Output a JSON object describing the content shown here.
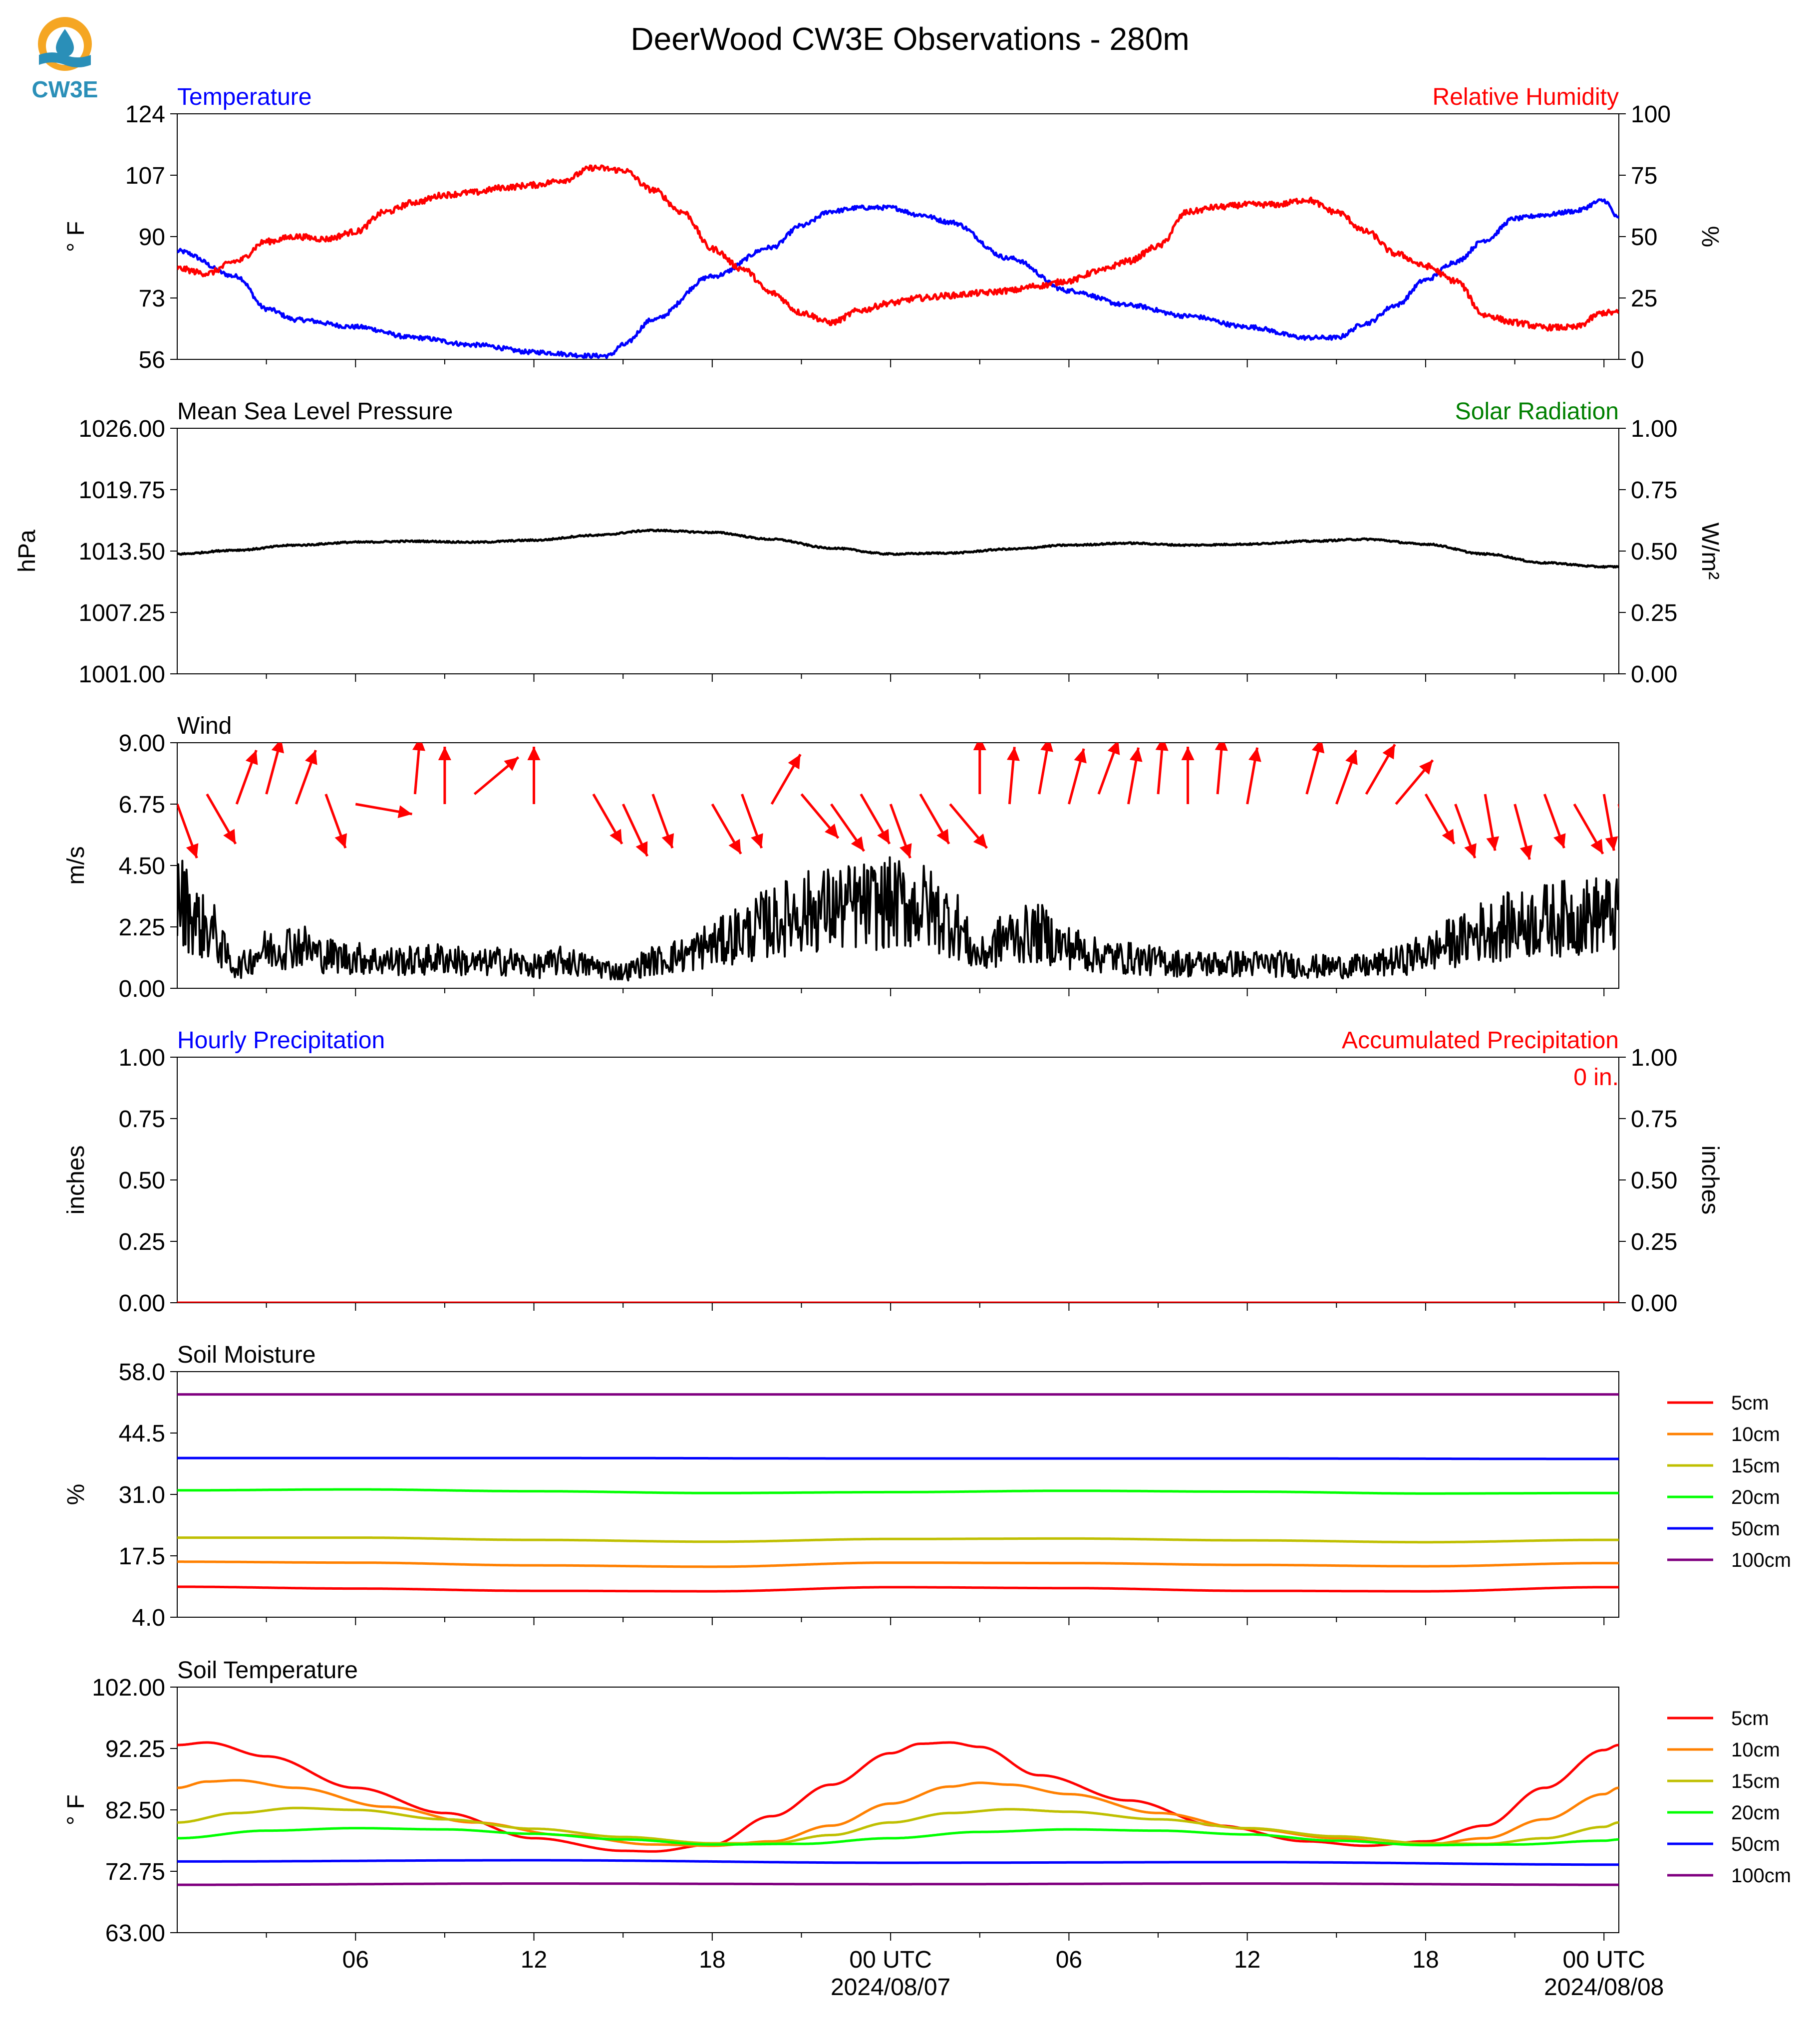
{
  "title": "DeerWood CW3E Observations - 280m",
  "logo": {
    "text": "CW3E",
    "icon": "water-drop-sun-logo",
    "colors": {
      "sun": "#f5a623",
      "water": "#2a8fb8"
    }
  },
  "colors": {
    "blue": "#0000ff",
    "red": "#ff0000",
    "green": "#008000",
    "black": "#000000"
  },
  "x_axis": {
    "range_hours": [
      -24,
      24.5
    ],
    "tick_labels": [
      {
        "h": -18,
        "label": "06"
      },
      {
        "h": -12,
        "label": "12"
      },
      {
        "h": -6,
        "label": "18"
      },
      {
        "h": 0,
        "label": "00 UTC",
        "date": "2024/08/07"
      },
      {
        "h": 6,
        "label": "06"
      },
      {
        "h": 12,
        "label": "12"
      },
      {
        "h": 18,
        "label": "18"
      },
      {
        "h": 24,
        "label": "00 UTC",
        "date": "2024/08/08"
      }
    ]
  },
  "chart_data": [
    {
      "type": "line",
      "title_left": "Temperature",
      "title_right": "Relative Humidity",
      "ylabel": "° F",
      "ylabel_right": "%",
      "ylim": [
        56,
        124
      ],
      "yticks": [
        "56",
        "73",
        "90",
        "107",
        "124"
      ],
      "ylim_right": [
        0,
        100
      ],
      "yticks_right": [
        "0",
        "25",
        "50",
        "75",
        "100"
      ],
      "series": [
        {
          "name": "Temperature",
          "color": "#0000ff",
          "axis": "left",
          "x": [
            -24,
            -22,
            -21,
            -20,
            -18,
            -16,
            -14,
            -12,
            -10,
            -9.5,
            -9,
            -8,
            -6,
            -4,
            -3,
            -2,
            -1,
            0,
            1,
            2,
            4,
            6,
            8,
            10,
            12,
            14,
            15,
            16,
            17,
            18,
            19,
            20,
            21,
            22,
            23,
            24,
            24.5
          ],
          "y": [
            86,
            79,
            70,
            67,
            65,
            62,
            60,
            58,
            57,
            57,
            60,
            67,
            79,
            87,
            93,
            97,
            98,
            98,
            96,
            94,
            84,
            75,
            71,
            68,
            65,
            62,
            62,
            66,
            71,
            78,
            83,
            89,
            95,
            96,
            97,
            100,
            95
          ]
        },
        {
          "name": "Relative Humidity",
          "color": "#ff0000",
          "axis": "right",
          "x": [
            -24,
            -23,
            -22,
            -21,
            -20,
            -19,
            -18,
            -17,
            -16,
            -15,
            -14,
            -13,
            -12,
            -11,
            -10,
            -9,
            -8,
            -7,
            -6,
            -5,
            -4,
            -3,
            -2,
            -1,
            0,
            1,
            2,
            3,
            4,
            5,
            6,
            7,
            8,
            9,
            10,
            11,
            12,
            13,
            14,
            15,
            16,
            17,
            18,
            19,
            20,
            21,
            22,
            23,
            24,
            24.5
          ],
          "y": [
            37,
            35,
            40,
            48,
            50,
            49,
            52,
            60,
            64,
            67,
            68,
            70,
            71,
            73,
            78,
            77,
            69,
            60,
            45,
            37,
            27,
            19,
            15,
            20,
            23,
            25,
            26,
            27,
            28,
            30,
            32,
            36,
            40,
            46,
            60,
            62,
            63,
            63,
            65,
            60,
            52,
            43,
            38,
            32,
            18,
            15,
            13,
            13,
            19,
            19
          ]
        }
      ]
    },
    {
      "type": "line",
      "title_left": "Mean Sea Level Pressure",
      "title_right": "Solar Radiation",
      "ylabel": "hPa",
      "ylabel_right": "W/m²",
      "ylim": [
        1001,
        1026
      ],
      "yticks": [
        "1001.00",
        "1007.25",
        "1013.50",
        "1019.75",
        "1026.00"
      ],
      "ylim_right": [
        0,
        1
      ],
      "yticks_right": [
        "0.00",
        "0.25",
        "0.50",
        "0.75",
        "1.00"
      ],
      "series": [
        {
          "name": "Mean Sea Level Pressure",
          "color": "#000000",
          "axis": "left",
          "x": [
            -24,
            -22,
            -20,
            -18,
            -16,
            -14,
            -12,
            -10,
            -8,
            -6,
            -4,
            -2,
            0,
            2,
            4,
            6,
            8,
            10,
            12,
            14,
            16,
            18,
            20,
            22,
            24,
            24.5
          ],
          "y": [
            1013.2,
            1013.6,
            1014.1,
            1014.4,
            1014.5,
            1014.4,
            1014.6,
            1015.1,
            1015.6,
            1015.4,
            1014.7,
            1013.8,
            1013.2,
            1013.3,
            1013.7,
            1014.1,
            1014.3,
            1014.1,
            1014.2,
            1014.5,
            1014.7,
            1014.2,
            1013.2,
            1012.3,
            1011.9,
            1011.9
          ]
        }
      ]
    },
    {
      "type": "line",
      "title_left": "Wind",
      "ylabel": "m/s",
      "ylim": [
        0,
        9
      ],
      "yticks": [
        "0.00",
        "2.25",
        "4.50",
        "6.75",
        "9.00"
      ],
      "series": [
        {
          "name": "Wind",
          "color": "#000000",
          "axis": "left",
          "x": [
            -24,
            -23,
            -22,
            -21,
            -20,
            -19,
            -18,
            -17,
            -16,
            -15,
            -14,
            -13,
            -12,
            -11,
            -10,
            -9,
            -8,
            -7,
            -6,
            -5,
            -4,
            -3,
            -2,
            -1,
            0,
            1,
            2,
            3,
            4,
            5,
            6,
            7,
            8,
            9,
            10,
            11,
            12,
            13,
            14,
            15,
            16,
            17,
            18,
            19,
            20,
            21,
            22,
            23,
            24,
            24.5
          ],
          "y": [
            3.2,
            2.2,
            0.8,
            1.4,
            1.6,
            1.2,
            1.1,
            1.0,
            1.0,
            1.1,
            0.9,
            1.0,
            0.8,
            1.0,
            0.8,
            0.6,
            1.0,
            1.2,
            1.6,
            2.0,
            2.4,
            2.8,
            2.9,
            3.0,
            3.1,
            3.0,
            2.5,
            1.2,
            1.9,
            2.0,
            1.5,
            1.2,
            1.1,
            1.0,
            0.9,
            0.9,
            0.9,
            0.9,
            0.8,
            0.8,
            0.8,
            1.0,
            1.3,
            1.7,
            2.1,
            2.3,
            2.5,
            2.6,
            2.7,
            2.6
          ]
        },
        {
          "name": "Wind Direction",
          "color": "#ff0000",
          "kind": "barbs",
          "y_base": 6.75,
          "x": [
            -24,
            -23,
            -22,
            -21,
            -20,
            -19,
            -18,
            -16,
            -15,
            -14,
            -12,
            -10,
            -9,
            -8,
            -6,
            -5,
            -4,
            -3,
            -2,
            -1,
            0,
            1,
            2,
            3,
            4,
            5,
            6,
            7,
            8,
            9,
            10,
            11,
            12,
            14,
            15,
            16,
            17,
            18,
            19,
            20,
            21,
            22,
            23,
            24,
            24.5
          ],
          "angle_deg": [
            160,
            150,
            20,
            15,
            20,
            160,
            100,
            5,
            0,
            50,
            0,
            150,
            155,
            160,
            150,
            160,
            30,
            140,
            145,
            150,
            160,
            150,
            140,
            0,
            5,
            10,
            15,
            20,
            10,
            5,
            0,
            5,
            10,
            15,
            20,
            30,
            40,
            150,
            160,
            170,
            165,
            160,
            150,
            170,
            165
          ]
        }
      ]
    },
    {
      "type": "line",
      "title_left": "Hourly Precipitation",
      "title_right": "Accumulated Precipitation",
      "annotation": "0 in.",
      "ylabel": "inches",
      "ylabel_right": "inches",
      "ylim": [
        0,
        1
      ],
      "yticks": [
        "0.00",
        "0.25",
        "0.50",
        "0.75",
        "1.00"
      ],
      "ylim_right": [
        0,
        1
      ],
      "yticks_right": [
        "0.00",
        "0.25",
        "0.50",
        "0.75",
        "1.00"
      ],
      "series": [
        {
          "name": "Hourly Precipitation",
          "color": "#0000ff",
          "axis": "left",
          "x": [
            -24,
            24.5
          ],
          "y": [
            0,
            0
          ]
        },
        {
          "name": "Accumulated Precipitation",
          "color": "#ff0000",
          "axis": "right",
          "x": [
            -24,
            24.5
          ],
          "y": [
            0,
            0
          ]
        }
      ]
    },
    {
      "type": "line",
      "title_left": "Soil Moisture",
      "ylabel": "%",
      "ylim": [
        4,
        58
      ],
      "yticks": [
        "4.0",
        "17.5",
        "31.0",
        "44.5",
        "58.0"
      ],
      "legend": "right",
      "series": [
        {
          "name": "5cm",
          "color": "#ff0000",
          "axis": "left",
          "x": [
            -24,
            -18,
            -12,
            -6,
            0,
            6,
            12,
            18,
            24,
            24.5
          ],
          "y": [
            10.7,
            10.3,
            9.8,
            9.7,
            10.6,
            10.4,
            9.8,
            9.7,
            10.6,
            10.6
          ]
        },
        {
          "name": "10cm",
          "color": "#ff8000",
          "axis": "left",
          "x": [
            -24,
            -18,
            -12,
            -6,
            0,
            6,
            12,
            18,
            24,
            24.5
          ],
          "y": [
            16.2,
            16.0,
            15.4,
            15.1,
            16.0,
            15.9,
            15.5,
            15.2,
            15.9,
            15.9
          ]
        },
        {
          "name": "15cm",
          "color": "#bfbf00",
          "axis": "left",
          "x": [
            -24,
            -18,
            -12,
            -6,
            0,
            6,
            12,
            18,
            24,
            24.5
          ],
          "y": [
            21.5,
            21.5,
            21.0,
            20.6,
            21.2,
            21.3,
            20.9,
            20.5,
            21.0,
            21.0
          ]
        },
        {
          "name": "20cm",
          "color": "#00ff00",
          "axis": "left",
          "x": [
            -24,
            -18,
            -12,
            -6,
            0,
            6,
            12,
            18,
            24,
            24.5
          ],
          "y": [
            31.9,
            32.1,
            31.7,
            31.3,
            31.5,
            31.8,
            31.6,
            31.2,
            31.3,
            31.3
          ]
        },
        {
          "name": "50cm",
          "color": "#0000ff",
          "axis": "left",
          "x": [
            -24,
            -12,
            0,
            12,
            24.5
          ],
          "y": [
            39.0,
            39.0,
            38.9,
            38.9,
            38.8
          ]
        },
        {
          "name": "100cm",
          "color": "#800080",
          "axis": "left",
          "x": [
            -24,
            -12,
            0,
            12,
            24.5
          ],
          "y": [
            53.0,
            53.0,
            53.0,
            53.0,
            53.0
          ]
        }
      ]
    },
    {
      "type": "line",
      "title_left": "Soil Temperature",
      "ylabel": "° F",
      "ylim": [
        63,
        102
      ],
      "yticks": [
        "63.00",
        "72.75",
        "82.50",
        "92.25",
        "102.00"
      ],
      "legend": "right",
      "series": [
        {
          "name": "5cm",
          "color": "#ff0000",
          "axis": "left",
          "x": [
            -24,
            -23,
            -21,
            -18,
            -15,
            -12,
            -9,
            -8,
            -6,
            -4,
            -2,
            0,
            1,
            2,
            3,
            5,
            8,
            11,
            14,
            16,
            18,
            20,
            22,
            24,
            24.5
          ],
          "y": [
            92.8,
            93.2,
            91,
            86,
            82,
            78,
            76,
            75.9,
            77,
            81.5,
            86.5,
            91.5,
            93.0,
            93.2,
            92.5,
            88,
            84,
            80,
            77.5,
            76.8,
            77.5,
            80,
            86,
            92,
            92.8
          ]
        },
        {
          "name": "10cm",
          "color": "#ff8000",
          "axis": "left",
          "x": [
            -24,
            -23,
            -22,
            -20,
            -17,
            -14,
            -11,
            -8,
            -6,
            -4,
            -2,
            0,
            2,
            3,
            4,
            6,
            9,
            12,
            15,
            17,
            18,
            20,
            22,
            24,
            24.5
          ],
          "y": [
            86.0,
            87.0,
            87.2,
            86,
            83,
            80.5,
            78.5,
            77,
            76.8,
            77.5,
            80,
            83.5,
            86.2,
            86.8,
            86.5,
            85,
            82,
            79.5,
            78,
            77.2,
            77,
            78,
            81,
            85,
            86
          ]
        },
        {
          "name": "15cm",
          "color": "#bfbf00",
          "axis": "left",
          "x": [
            -24,
            -22,
            -20,
            -18,
            -15,
            -12,
            -9,
            -6,
            -4,
            -2,
            0,
            2,
            4,
            6,
            9,
            12,
            15,
            18,
            20,
            22,
            24,
            24.5
          ],
          "y": [
            80.5,
            82,
            82.8,
            82.5,
            81,
            79.5,
            78.2,
            77.2,
            77.2,
            78.5,
            80.5,
            82,
            82.6,
            82.2,
            81,
            79.6,
            78.3,
            77.2,
            77.1,
            78,
            79.8,
            80.5
          ]
        },
        {
          "name": "20cm",
          "color": "#00ff00",
          "axis": "left",
          "x": [
            -24,
            -21,
            -18,
            -15,
            -12,
            -9,
            -6,
            -3,
            0,
            3,
            6,
            9,
            12,
            15,
            18,
            21,
            24,
            24.5
          ],
          "y": [
            78.0,
            79.2,
            79.6,
            79.4,
            78.7,
            77.8,
            77.0,
            77.1,
            78.0,
            79.0,
            79.4,
            79.2,
            78.6,
            77.6,
            76.9,
            77.0,
            77.6,
            77.8
          ]
        },
        {
          "name": "50cm",
          "color": "#0000ff",
          "axis": "left",
          "x": [
            -24,
            -12,
            0,
            12,
            24.5
          ],
          "y": [
            74.3,
            74.5,
            74.1,
            74.2,
            73.8
          ]
        },
        {
          "name": "100cm",
          "color": "#800080",
          "axis": "left",
          "x": [
            -24,
            -12,
            0,
            12,
            24.5
          ],
          "y": [
            70.6,
            70.8,
            70.7,
            70.8,
            70.6
          ]
        }
      ]
    }
  ]
}
